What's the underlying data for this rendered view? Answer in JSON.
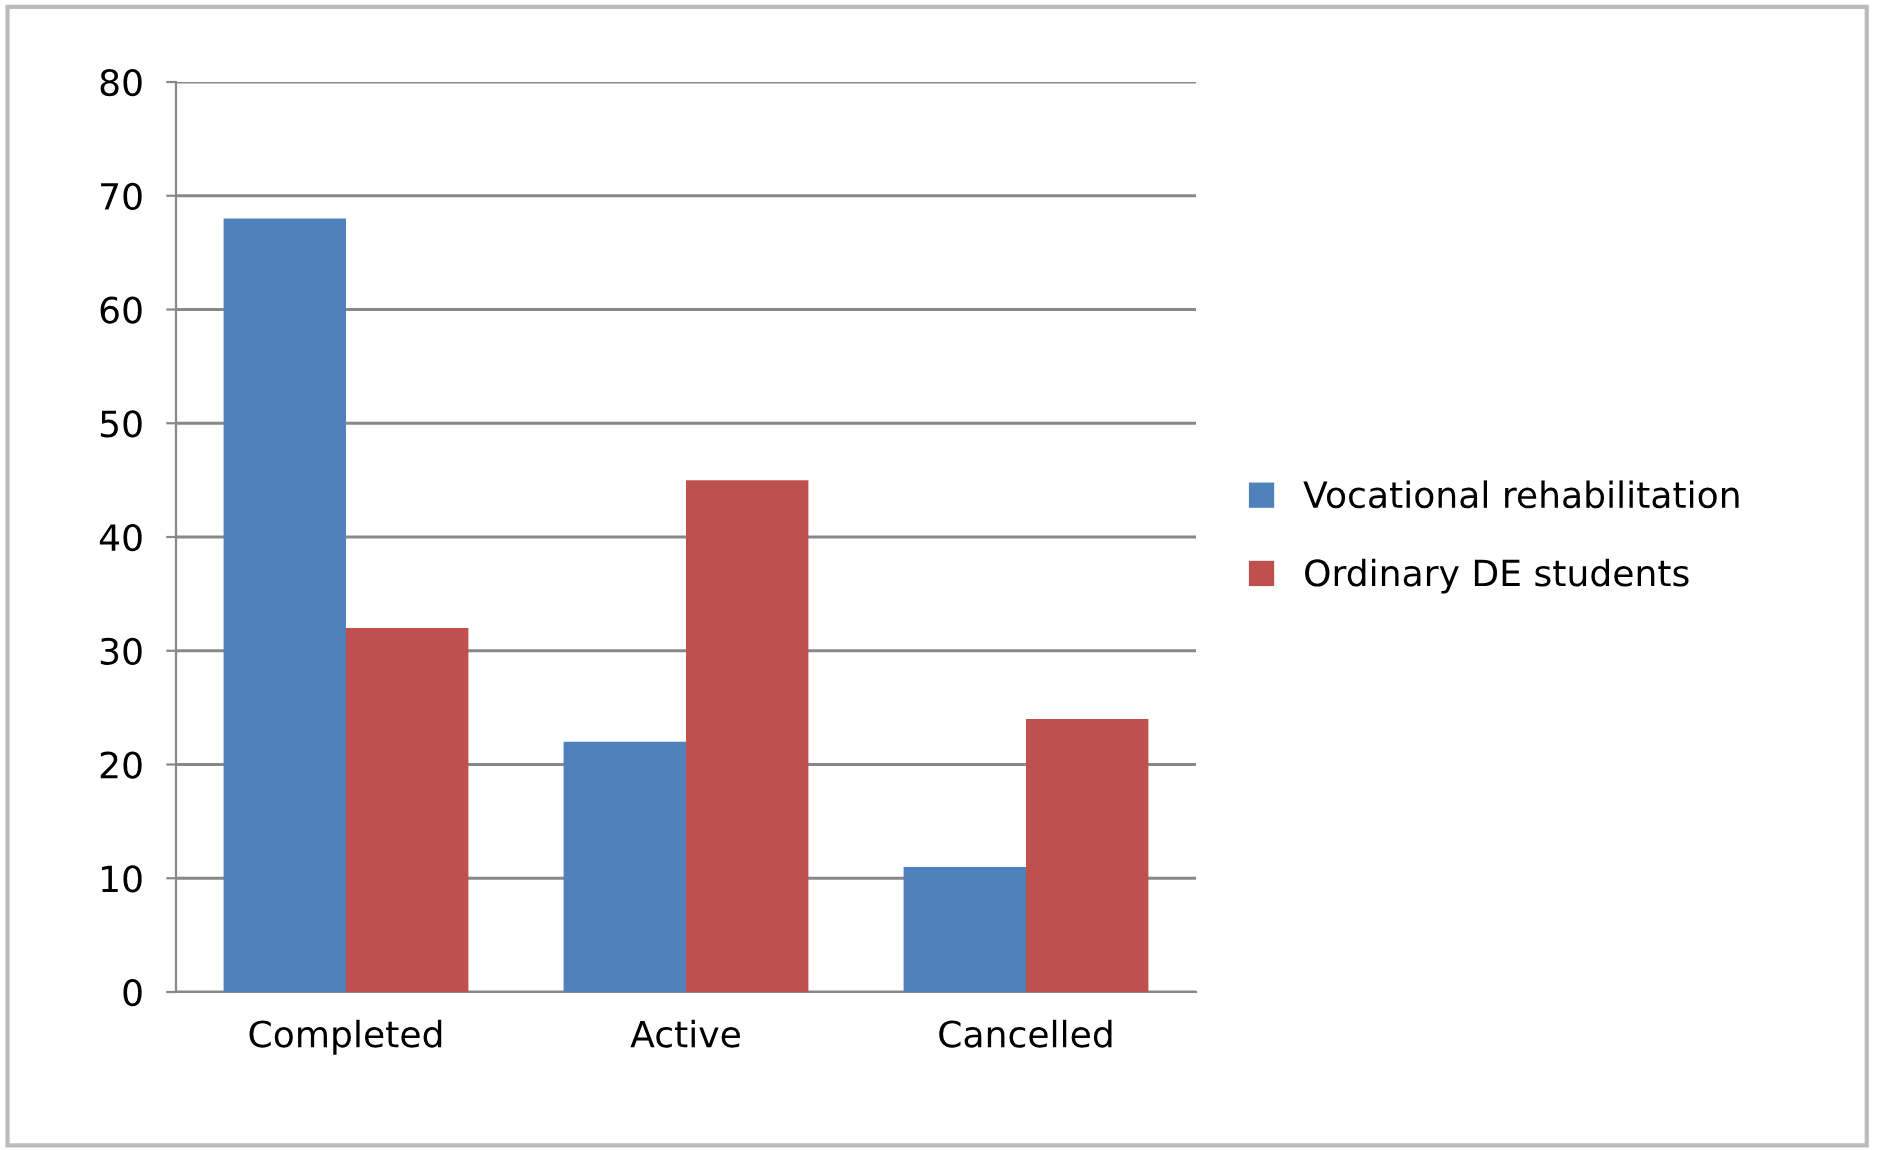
{
  "chart_data": {
    "type": "bar",
    "categories": [
      "Completed",
      "Active",
      "Cancelled"
    ],
    "series": [
      {
        "name": "Vocational rehabilitation",
        "color": "#4f81bd",
        "values": [
          68,
          22,
          11
        ]
      },
      {
        "name": "Ordinary DE students",
        "color": "#c0504d",
        "values": [
          32,
          45,
          24
        ]
      }
    ],
    "ylim": [
      0,
      80
    ],
    "yticks": [
      0,
      10,
      20,
      30,
      40,
      50,
      60,
      70,
      80
    ],
    "grid": "y",
    "legend": "right"
  }
}
